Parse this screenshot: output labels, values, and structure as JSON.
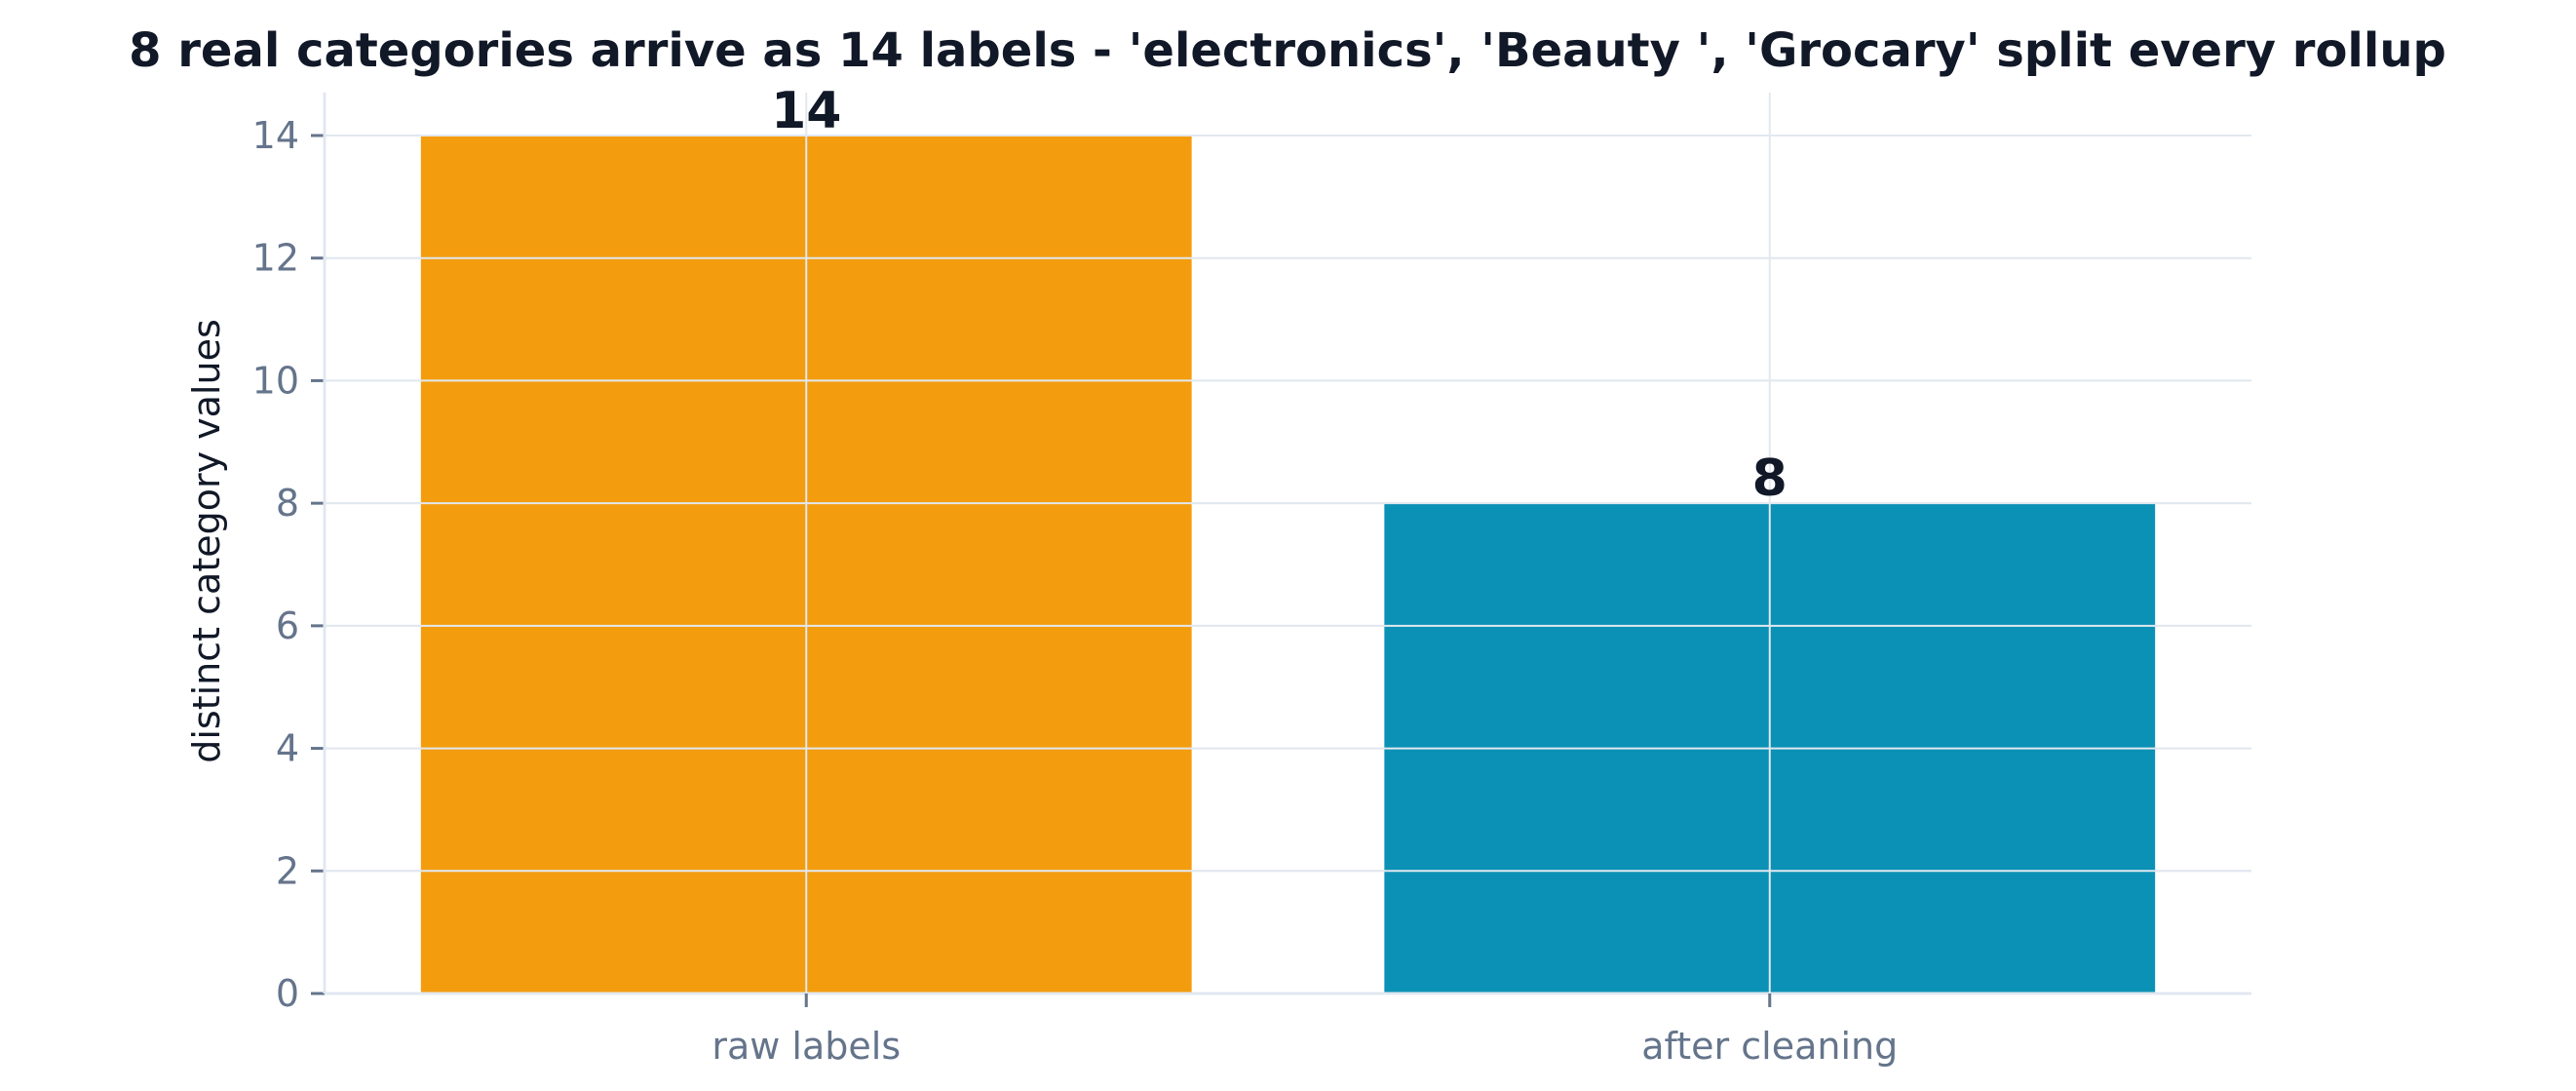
{
  "chart_data": {
    "type": "bar",
    "title": "8 real categories arrive as 14 labels - 'electronics', 'Beauty ', 'Grocary' split every rollup",
    "xlabel": "",
    "ylabel": "distinct category values",
    "categories": [
      "raw labels",
      "after cleaning"
    ],
    "values": [
      14,
      8
    ],
    "value_labels": [
      "14",
      "8"
    ],
    "colors": [
      "#f39c0e",
      "#0b91b5"
    ],
    "ylim": [
      0,
      14.7
    ],
    "yticks": [
      0,
      2,
      4,
      6,
      8,
      10,
      12,
      14
    ],
    "grid": true,
    "legend": "none"
  }
}
